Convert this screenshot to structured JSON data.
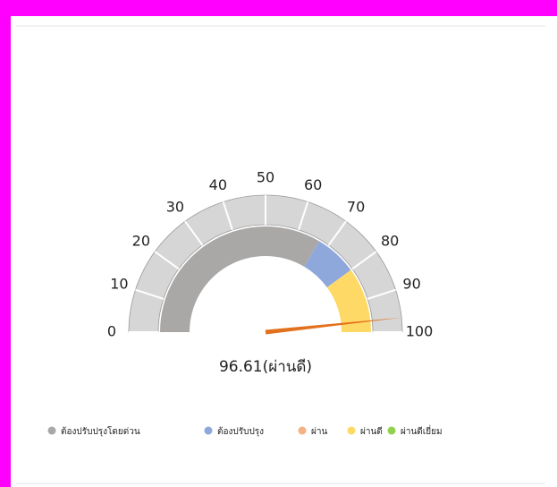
{
  "chart_data": {
    "type": "gauge",
    "value": 96.61,
    "value_label": "96.61(ผ่านดี)",
    "ylim": [
      0,
      100
    ],
    "yticks": [
      0,
      10,
      20,
      30,
      40,
      50,
      60,
      70,
      80,
      90,
      100
    ],
    "needle_color": "#e2711d",
    "bands": [
      {
        "name": "ต้องปรับปรุงโดยด่วน",
        "color": "#aaa7a7",
        "from": 0,
        "to": 67
      },
      {
        "name": "ต้องปรับปรุง",
        "color": "#8fa8dc",
        "from": 67,
        "to": 80
      },
      {
        "name": "ผ่าน",
        "color": "#f4b183",
        "from": 80,
        "to": 80
      },
      {
        "name": "ผ่านดี",
        "color": "#ffd966",
        "from": 80,
        "to": 100
      },
      {
        "name": "ผ่านดีเยี่ยม",
        "color": "#92d050",
        "from": 100,
        "to": 100
      }
    ]
  }
}
